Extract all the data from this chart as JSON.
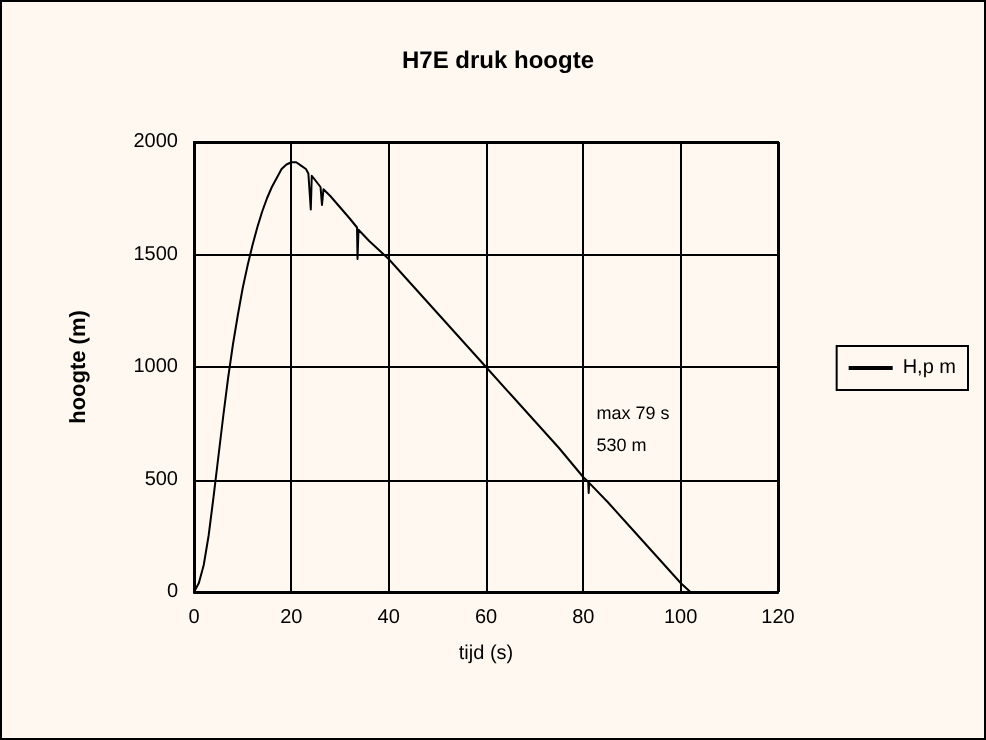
{
  "chart_data": {
    "type": "line",
    "title": "H7E druk hoogte",
    "xlabel": "tijd (s)",
    "ylabel": "hoogte (m)",
    "x": [
      0,
      1,
      2,
      3,
      4,
      5,
      6,
      7,
      8,
      9,
      10,
      11,
      12,
      13,
      14,
      15,
      16,
      17,
      18,
      19,
      20,
      21,
      22,
      23,
      23.5,
      24,
      24.2,
      26,
      26.3,
      26.6,
      28,
      30,
      32,
      33.5,
      33.6,
      33.8,
      36,
      38,
      40,
      45,
      50,
      55,
      60,
      65,
      70,
      75,
      80,
      81,
      81.1,
      81.2,
      85,
      90,
      95,
      100,
      102
    ],
    "series": [
      {
        "name": "H,p m",
        "color": "#000000",
        "values": [
          0,
          40,
          120,
          250,
          420,
          600,
          780,
          950,
          1100,
          1230,
          1350,
          1450,
          1540,
          1620,
          1690,
          1750,
          1800,
          1840,
          1880,
          1900,
          1910,
          1910,
          1895,
          1880,
          1860,
          1700,
          1850,
          1800,
          1720,
          1790,
          1760,
          1710,
          1660,
          1620,
          1480,
          1610,
          1560,
          1520,
          1480,
          1360,
          1240,
          1120,
          1000,
          880,
          760,
          640,
          510,
          490,
          440,
          485,
          400,
          280,
          160,
          40,
          0
        ]
      }
    ],
    "annotations": [
      {
        "text": "max 79 s\n530 m",
        "x": 79,
        "y": 530
      }
    ],
    "xlim": [
      0,
      120
    ],
    "xticks": [
      0,
      20,
      40,
      60,
      80,
      100,
      120
    ],
    "ylim": [
      0,
      2000
    ],
    "yticks": [
      0,
      500,
      1000,
      1500,
      2000
    ],
    "grid": true,
    "legend": "right",
    "marker": "none",
    "line_style": "solid"
  }
}
